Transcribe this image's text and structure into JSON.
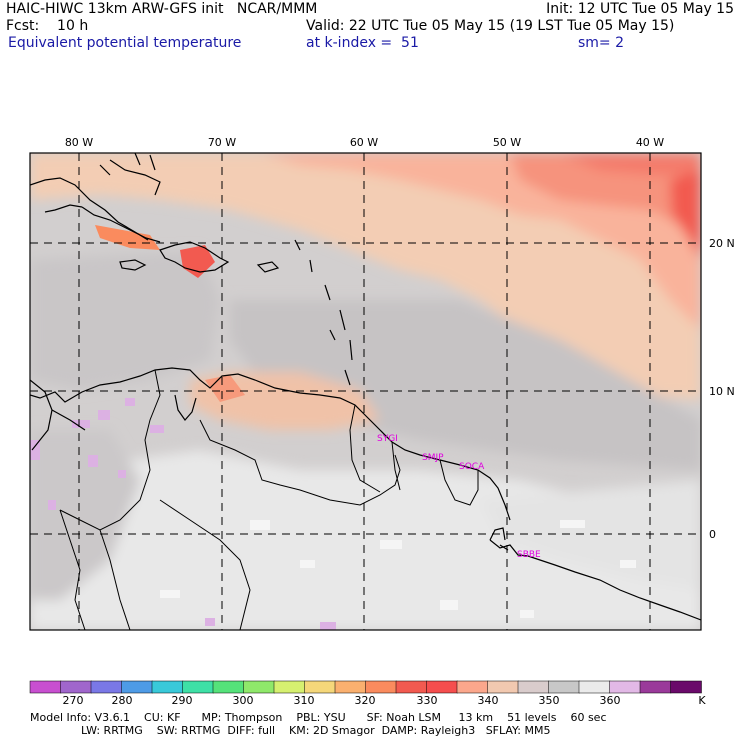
{
  "header": {
    "model_line": "HAIC-HIWC 13km ARW-GFS init   NCAR/MMM",
    "init_line": "Init: 12 UTC Tue 05 May 15",
    "fcst_line": "Fcst:    10 h",
    "valid_line": "Valid: 22 UTC Tue 05 May 15 (19 LST Tue 05 May 15)",
    "field_name": "Equivalent potential temperature",
    "level": "at k-index =  51",
    "smoothing": "sm= 2"
  },
  "map": {
    "lon_labels": [
      "80 W",
      "70 W",
      "60 W",
      "50 W",
      "40 W"
    ],
    "lat_labels": [
      "20 N",
      "10 N",
      "0"
    ],
    "stations": [
      "SYGI",
      "SMJP",
      "SOCA",
      "SBBE"
    ]
  },
  "colorbar": {
    "colors": [
      "#c84fd0",
      "#a066cc",
      "#7a78e6",
      "#4e9be6",
      "#39c9d9",
      "#3ee0a6",
      "#55e27a",
      "#8fe86a",
      "#d6f070",
      "#f5d77a",
      "#fab06f",
      "#fa8b5e",
      "#f25a50",
      "#f54e4e",
      "#fba78c",
      "#f2c9b0",
      "#d9cccc",
      "#c8c8c8",
      "#ebebeb",
      "#e2b9e6",
      "#9a3a9a",
      "#6a0a6a"
    ],
    "labels": [
      "270",
      "280",
      "290",
      "300",
      "310",
      "320",
      "330",
      "340",
      "350",
      "360"
    ],
    "unit": "K"
  },
  "footer": {
    "line1": "Model Info: V3.6.1    CU: KF      MP: Thompson    PBL: YSU      SF: Noah LSM     13 km    51 levels    60 sec",
    "line2": "LW: RRTMG    SW: RRTMG  DIFF: full    KM: 2D Smagor  DAMP: Rayleigh3   SFLAY: MM5"
  }
}
